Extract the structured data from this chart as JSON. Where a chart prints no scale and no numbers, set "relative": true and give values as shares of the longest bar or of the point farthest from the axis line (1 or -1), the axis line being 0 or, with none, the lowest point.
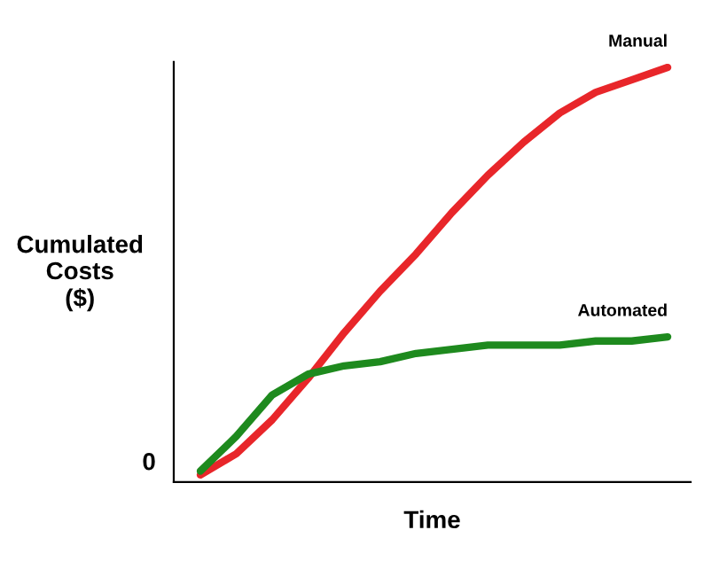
{
  "chart_data": {
    "type": "line",
    "relative": true,
    "xlabel": "Time",
    "ylabel": "Cumulated\nCosts\n($)",
    "categories": [
      null,
      null,
      null,
      null,
      null,
      null,
      null,
      null,
      null,
      null,
      null,
      null,
      null,
      null
    ],
    "series": [
      {
        "name": "Manual",
        "color": "#e8262a",
        "values": [
          0.017,
          0.068,
          0.15,
          0.25,
          0.36,
          0.46,
          0.55,
          0.65,
          0.74,
          0.82,
          0.89,
          0.94,
          0.97,
          1
        ]
      },
      {
        "name": "Automated",
        "color": "#1e8a1e",
        "values": [
          0.026,
          0.11,
          0.21,
          0.26,
          0.28,
          0.29,
          0.31,
          0.32,
          0.33,
          0.33,
          0.33,
          0.34,
          0.34,
          0.35
        ]
      }
    ],
    "annotations": [
      "0"
    ],
    "grid": false,
    "legend": false,
    "marker": "none",
    "line_style": "solid"
  }
}
